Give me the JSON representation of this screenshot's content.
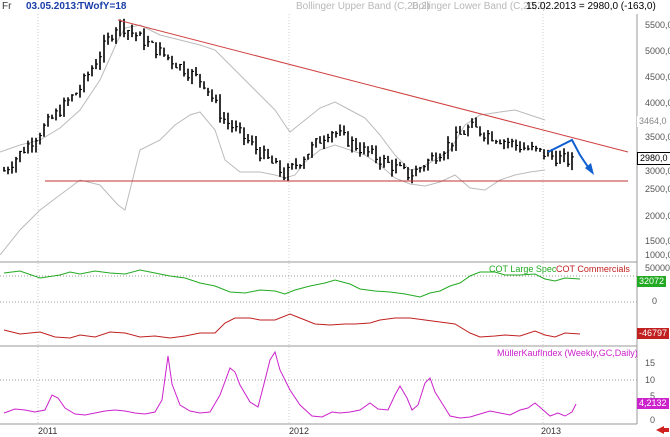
{
  "header": {
    "period_label": "Fr",
    "date": "03.05.2013:",
    "symbol": "TWofY=18",
    "indicator_upper": "Bollinger Upper Band (C,20,2)",
    "indicator_lower": "Bollinger Lower Band (C,20,2)",
    "readout": "15.02.2013 = 2980,0 (-163,0)"
  },
  "colors": {
    "price": "#000000",
    "bollinger": "#bbbbbb",
    "trendline": "#d04040",
    "support": "#c03030",
    "arrow": "#1060d0",
    "cot_large_spec": "#22aa22",
    "cot_commercials": "#c02020",
    "mueller": "#cc22cc"
  },
  "price_panel": {
    "y_ticks": [
      "5500,0",
      "5000,0",
      "4500,0",
      "4000,0",
      "3500,0",
      "3000,0",
      "2500,0",
      "2000,0",
      "1500,0",
      "1000,0"
    ],
    "last_price_tag": "2980,0",
    "upper_band_tag": "3464,0"
  },
  "cot_panel": {
    "legend_large_spec": "COT Large Spec",
    "legend_commercials": "COT Commercials",
    "y_ticks": [
      "50000",
      "0"
    ],
    "large_spec_tag": "32072",
    "commercials_tag": "-46797"
  },
  "mueller_panel": {
    "legend": "MüllerKaufIndex (Weekly,GC,Daily)",
    "y_ticks": [
      "15",
      "10",
      "5",
      "0"
    ],
    "value_tag": "4,2132"
  },
  "x_axis": {
    "labels": [
      "2011",
      "2012",
      "2013"
    ]
  },
  "chart_data": [
    {
      "type": "line",
      "title": "",
      "series": [
        {
          "name": "Price",
          "x": [
            "2011-01",
            "2011-04",
            "2011-05",
            "2011-09",
            "2011-10",
            "2012-01",
            "2012-03",
            "2012-06",
            "2012-08",
            "2012-11",
            "2013-01",
            "2013-02"
          ],
          "values": [
            2800,
            4500,
            5850,
            4600,
            3900,
            2700,
            3650,
            3200,
            2700,
            3700,
            3300,
            2980
          ]
        },
        {
          "name": "Bollinger Upper Band (C,20,2)",
          "values": [
            3600,
            5000,
            5900,
            5400,
            4700,
            3600,
            3900,
            3700,
            3100,
            3900,
            3600,
            3464
          ]
        },
        {
          "name": "Bollinger Lower Band (C,20,2)",
          "values": [
            1300,
            2500,
            3600,
            3400,
            2600,
            1800,
            2900,
            2800,
            2300,
            2600,
            2700,
            2700
          ]
        }
      ],
      "ylim": [
        1000,
        5950
      ]
    },
    {
      "type": "line",
      "series": [
        {
          "name": "COT Large Spec",
          "values": [
            20000,
            30000,
            35000,
            20000,
            10000,
            18000,
            35000,
            20000,
            15000,
            30000,
            45000,
            32072
          ]
        },
        {
          "name": "COT Commercials",
          "values": [
            -90000,
            -75000,
            -80000,
            -60000,
            -20000,
            -40000,
            -30000,
            -20000,
            -30000,
            -50000,
            -90000,
            -46797
          ]
        }
      ]
    },
    {
      "type": "line",
      "series": [
        {
          "name": "MüllerKaufIndex (Weekly,GC,Daily)",
          "values": [
            2,
            3,
            5,
            15.5,
            3,
            6,
            12,
            3,
            1,
            2,
            10,
            1,
            2,
            3,
            4.2132
          ]
        }
      ],
      "ylim": [
        0,
        16
      ]
    }
  ]
}
